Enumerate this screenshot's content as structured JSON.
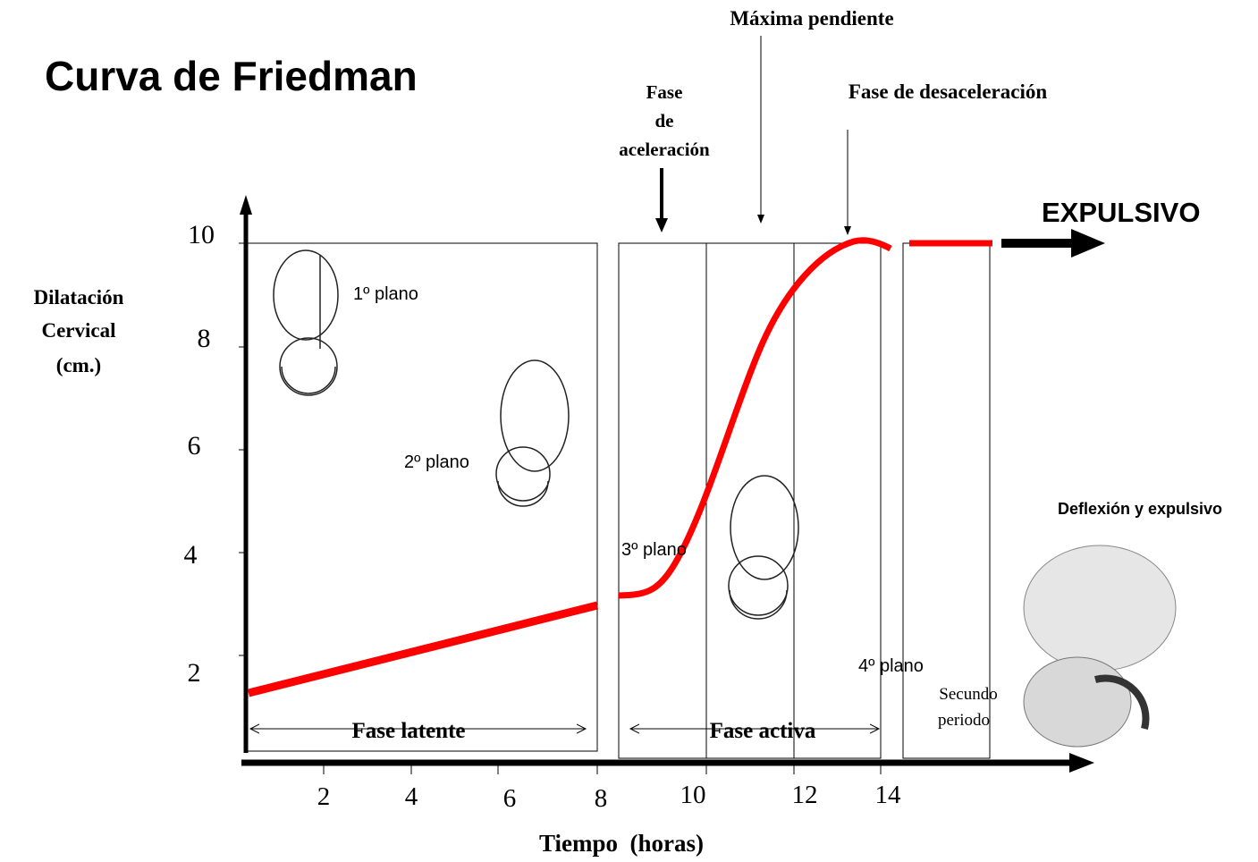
{
  "title": "Curva de Friedman",
  "annotations": {
    "maxima_pendiente": "Máxima pendiente",
    "fase_desaceleracion": "Fase de desaceleración",
    "fase_aceleracion": [
      "Fase",
      "de",
      "aceleración"
    ],
    "expulsivo": "EXPULSIVO"
  },
  "y_axis": {
    "label": [
      "Dilatación",
      "Cervical",
      "(cm.)"
    ],
    "ticks": [
      "10",
      "8",
      "6",
      "4",
      "2"
    ]
  },
  "x_axis": {
    "label": "Tiempo  (horas)",
    "ticks": [
      "2",
      "4",
      "6",
      "8",
      "10",
      "12",
      "14"
    ]
  },
  "phases": {
    "latente": "Fase latente",
    "activa": "Fase activa"
  },
  "planes": [
    "1º plano",
    "2º plano",
    "3º plano",
    "4º plano"
  ],
  "secundo_periodo": [
    "Secundo",
    "periodo"
  ],
  "deflexion": "Deflexión y expulsivo"
}
